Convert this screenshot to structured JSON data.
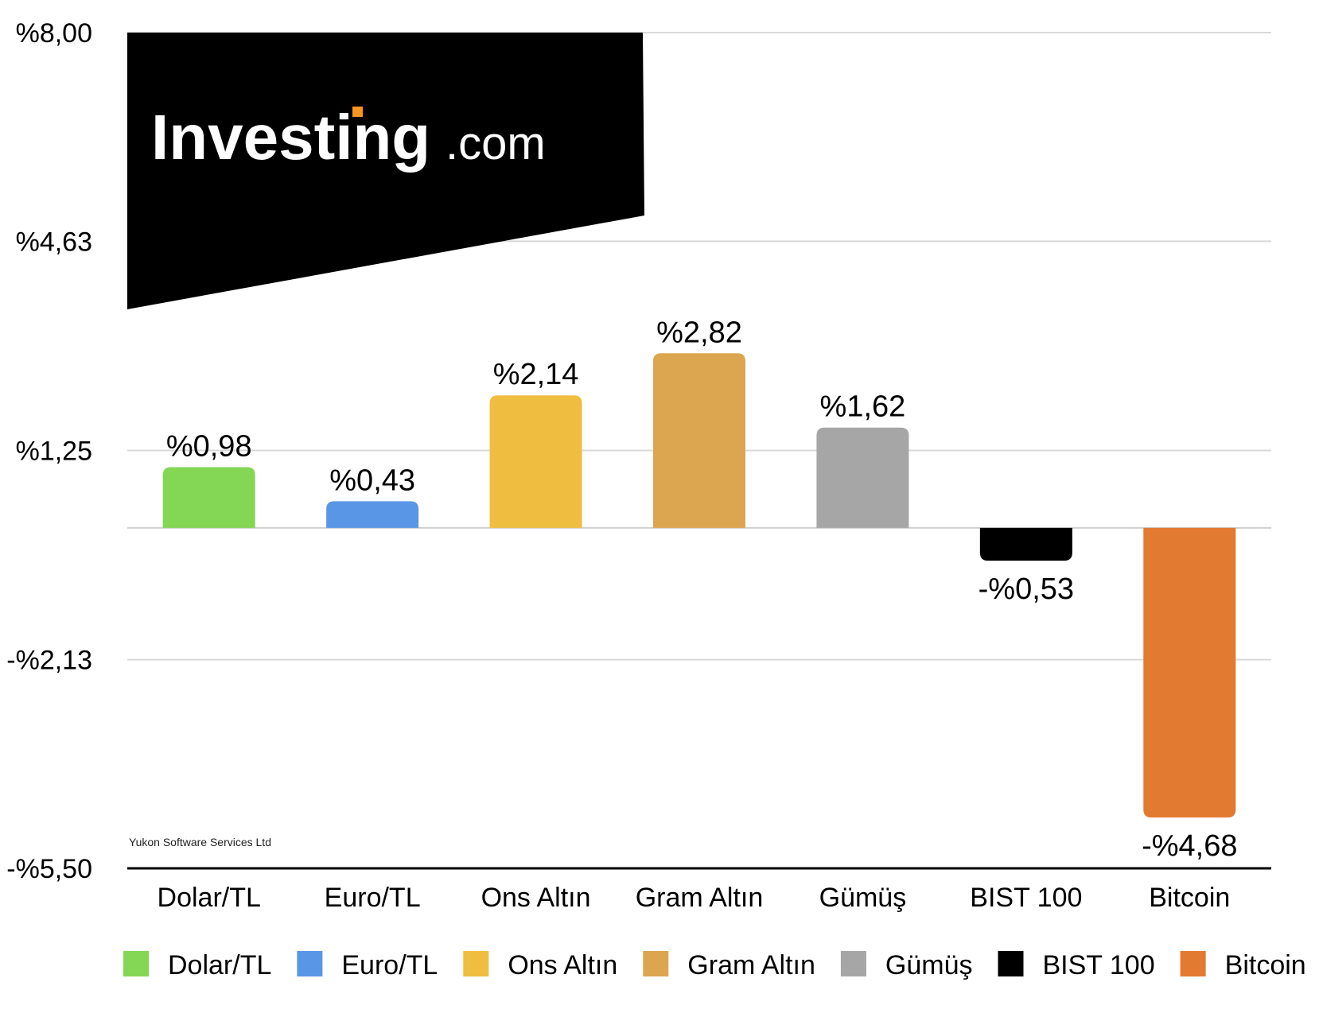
{
  "logo": {
    "brand": "Investing",
    "suffix": ".com"
  },
  "watermark": "Yukon Software Services Ltd",
  "chart_data": {
    "type": "bar",
    "categories": [
      "Dolar/TL",
      "Euro/TL",
      "Ons Altın",
      "Gram Altın",
      "Gümüş",
      "BIST 100",
      "Bitcoin"
    ],
    "values": [
      0.98,
      0.43,
      2.14,
      2.82,
      1.62,
      -0.53,
      -4.68
    ],
    "value_labels": [
      "%0,98",
      "%0,43",
      "%2,14",
      "%2,82",
      "%1,62",
      "-%0,53",
      "-%4,68"
    ],
    "colors": [
      "#84d655",
      "#5a96e6",
      "#efbd40",
      "#dca54f",
      "#a6a6a6",
      "#000000",
      "#e27a32"
    ],
    "yticks": [
      8.0,
      4.63,
      1.25,
      -2.13,
      -5.5
    ],
    "ytick_labels": [
      "%8,00",
      "%4,63",
      "%1,25",
      "-%2,13",
      "-%5,50"
    ],
    "ylim": [
      -5.5,
      8.0
    ],
    "grid": true,
    "legend": "bottom",
    "legend_entries": [
      "Dolar/TL",
      "Euro/TL",
      "Ons Altın",
      "Gram Altın",
      "Gümüş",
      "BIST 100",
      "Bitcoin"
    ],
    "title": "",
    "xlabel": "",
    "ylabel": ""
  }
}
